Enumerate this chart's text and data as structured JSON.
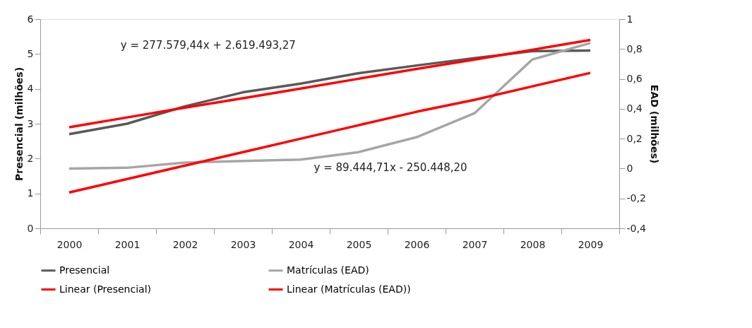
{
  "chart_data": {
    "type": "line",
    "ylabel": "Presencial (milhões)",
    "y2label": "EAD (milhões)",
    "categories": [
      "2000",
      "2001",
      "2002",
      "2003",
      "2004",
      "2005",
      "2006",
      "2007",
      "2008",
      "2009"
    ],
    "series": [
      {
        "name": "Presencial",
        "color": "#595959",
        "values": [
          2.7,
          3.0,
          3.5,
          3.9,
          4.15,
          4.45,
          4.67,
          4.88,
          5.08,
          5.1
        ]
      },
      {
        "name": "Matrículas (EAD)",
        "color": "#a6a6a6",
        "axis": "y2",
        "values": [
          0.0,
          0.005,
          0.04,
          0.05,
          0.06,
          0.11,
          0.21,
          0.37,
          0.73,
          0.84
        ]
      },
      {
        "name": "Linear (Presencial)",
        "color": "#ff0000",
        "type": "line",
        "values": [
          2.9,
          3.18,
          3.46,
          3.73,
          4.01,
          4.29,
          4.57,
          4.84,
          5.12,
          5.4
        ]
      },
      {
        "name": "Linear (Matrículas (EAD))",
        "color": "#ff0000",
        "type": "line",
        "axis": "y2",
        "values": [
          -0.16,
          -0.07,
          0.02,
          0.11,
          0.2,
          0.29,
          0.38,
          0.46,
          0.55,
          0.64
        ]
      }
    ],
    "ylim": [
      0,
      6
    ],
    "yticks": [
      0,
      1,
      2,
      3,
      4,
      5,
      6
    ],
    "y2lim": [
      -0.4,
      1
    ],
    "y2ticks": [
      {
        "value": -0.4,
        "label": "-0,4"
      },
      {
        "value": -0.2,
        "label": "-0,2"
      },
      0,
      {
        "value": 0.2,
        "label": "0,2"
      },
      {
        "value": 0.4,
        "label": "0,4"
      },
      {
        "value": 0.6,
        "label": "0,6"
      },
      {
        "value": 0.8,
        "label": "0,8"
      },
      1
    ],
    "annotations": [
      "y = 277.579,44x + 2.619.493,27",
      "y = 89.444,71x - 250.448,20"
    ],
    "legend": "bottom",
    "grid": false
  }
}
